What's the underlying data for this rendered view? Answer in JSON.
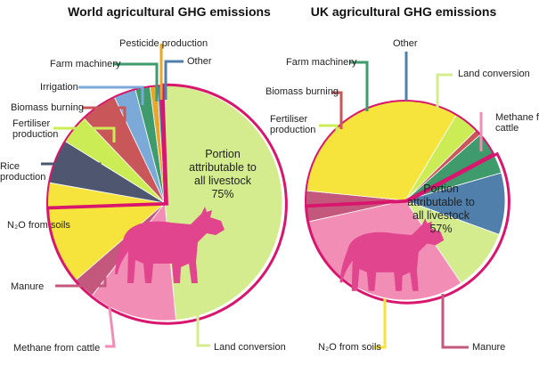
{
  "chart_data": [
    {
      "type": "pie",
      "title": "World agricultural GHG emissions",
      "categories": [
        "Land conversion",
        "Methane from cattle",
        "Manure",
        "N2O from soils",
        "Rice production",
        "Fertiliser production",
        "Biomass burning",
        "Irrigation",
        "Farm machinery",
        "Pesticide production",
        "Other"
      ],
      "labels": [
        "Land conversion",
        "Methane from cattle",
        "Manure",
        "N₂O from soils",
        "Rice production",
        "Fertiliser production",
        "Biomass burning",
        "Irrigation",
        "Farm machinery",
        "Pesticide production",
        "Other"
      ],
      "values": [
        48,
        12,
        3,
        14,
        6,
        4,
        5,
        3,
        2,
        1,
        1
      ],
      "colors": [
        "#d4ec8e",
        "#f28eb5",
        "#c4577c",
        "#f6e33b",
        "#4e5670",
        "#ccec55",
        "#c9575a",
        "#7ba9d8",
        "#3f9a6c",
        "#e8a62a",
        "#4f7faa"
      ],
      "livestock_portion": {
        "label_lines": [
          "Portion",
          "attributable to",
          "all livestock",
          "75%"
        ],
        "value": 75
      },
      "cow_icon": "cow-silhouette-icon"
    },
    {
      "type": "pie",
      "title": "UK agricultural GHG emissions",
      "categories": [
        "Land conversion",
        "Methane from cattle",
        "Manure",
        "N2O from soils",
        "Fertiliser production",
        "Biomass burning",
        "Farm machinery",
        "Other"
      ],
      "labels": [
        "Land conversion",
        "Methane from cattle",
        "Manure",
        "N₂O from soils",
        "Fertiliser production",
        "Biomass burning",
        "Farm machinery",
        "Other"
      ],
      "values": [
        10,
        31,
        5,
        32,
        4,
        1,
        7,
        10
      ],
      "colors": [
        "#d4ec8e",
        "#f28eb5",
        "#c4577c",
        "#f6e33b",
        "#ccec55",
        "#c9575a",
        "#3f9a6c",
        "#4f7faa"
      ],
      "livestock_portion": {
        "label_lines": [
          "Portion",
          "attributable to",
          "all livestock",
          "57%"
        ],
        "value": 57
      },
      "cow_icon": "cow-silhouette-icon"
    }
  ]
}
